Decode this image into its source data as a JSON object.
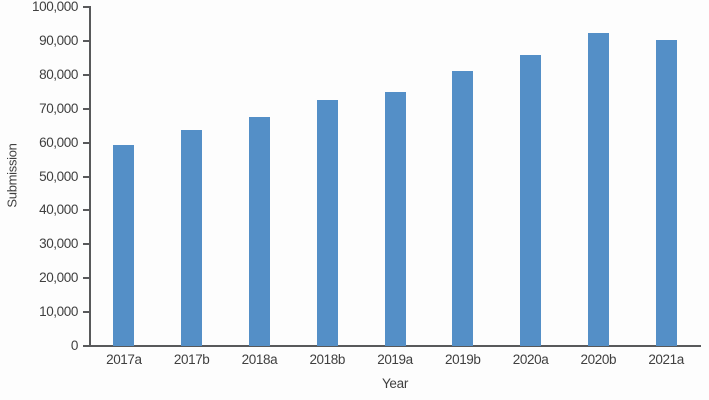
{
  "chart_data": {
    "type": "bar",
    "title": "",
    "categories": [
      "2017a",
      "2017b",
      "2018a",
      "2018b",
      "2019a",
      "2019b",
      "2020a",
      "2020b",
      "2021a"
    ],
    "values": [
      59300,
      63800,
      67500,
      72500,
      75000,
      81200,
      85800,
      92300,
      90200
    ],
    "xlabel": "Year",
    "ylabel": "Submission",
    "ylim": [
      0,
      100000
    ],
    "ytick_step": 10000,
    "ytick_labels": [
      "0",
      "10,000",
      "20,000",
      "30,000",
      "40,000",
      "50,000",
      "60,000",
      "70,000",
      "80,000",
      "90,000",
      "100,000"
    ],
    "grid": false,
    "legend_position": "none",
    "bar_color": "#548fc7",
    "axis_color": "#58595b",
    "text_color": "#3f3f3f",
    "background_color": "#fdfdfd"
  }
}
